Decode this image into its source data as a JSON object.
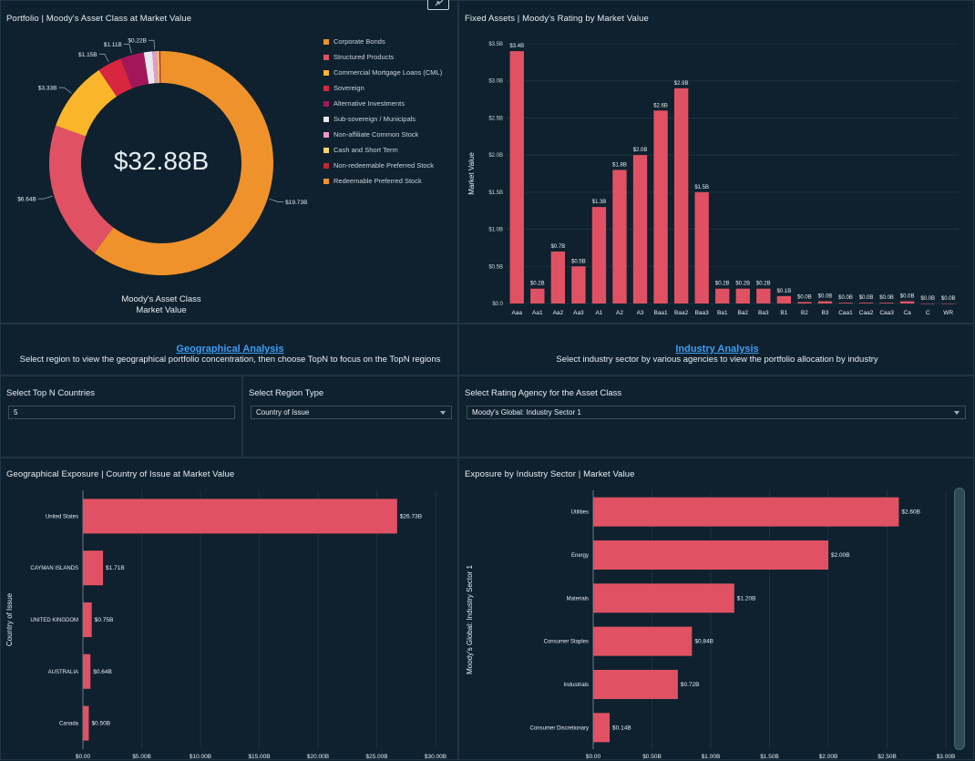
{
  "colors": {
    "bar": "#e05263",
    "grid": "#1f3545",
    "axis": "#7f8f9a"
  },
  "donut_panel": {
    "title": "Portfolio | Moody's Asset Class at Market Value",
    "center_value": "$32.88B",
    "caption_line1": "Moody's Asset Class",
    "caption_line2": "Market Value"
  },
  "rating_panel": {
    "title": "Fixed Assets | Moody's Rating by Market Value",
    "ylabel": "Market Value"
  },
  "geo_section": {
    "link": "Geographical Analysis",
    "desc": "Select region to view the geographical portfolio concentration, then choose TopN to focus on the TopN regions"
  },
  "industry_section": {
    "link": "Industry Analysis",
    "desc": "Select industry sector by various agencies to view the portfolio allocation by industry"
  },
  "controls": {
    "topn_label": "Select Top N Countries",
    "topn_value": "5",
    "region_label": "Select Region Type",
    "region_value": "Country of Issue",
    "agency_label": "Select Rating Agency for the Asset Class",
    "agency_value": "Moody's Global: Industry Sector 1"
  },
  "geo_panel": {
    "title": "Geographical Exposure | Country of Issue at Market Value",
    "ylabel": "Country of Issue"
  },
  "industry_panel": {
    "title": "Exposure by Industry Sector |  Market Value",
    "ylabel": "Moody's Global: Industry Sector 1"
  },
  "chart_data": [
    {
      "type": "pie",
      "title": "Portfolio | Moody's Asset Class at Market Value",
      "slices": [
        {
          "name": "Corporate Bonds",
          "value": 19.73,
          "label": "$19.73B",
          "color": "#f0922b"
        },
        {
          "name": "Structured Products",
          "value": 6.64,
          "label": "$6.64B",
          "color": "#e05263"
        },
        {
          "name": "Commercial Mortgage Loans (CML)",
          "value": 3.33,
          "label": "$3.33B",
          "color": "#fbb52b"
        },
        {
          "name": "Sovereign",
          "value": 1.15,
          "label": "$1.15B",
          "color": "#d7263d"
        },
        {
          "name": "Alternative Investments",
          "value": 1.11,
          "label": "$1.11B",
          "color": "#a3175a"
        },
        {
          "name": "Sub-sovereign / Municipals",
          "value": 0.4,
          "label": "",
          "color": "#e8e8ee"
        },
        {
          "name": "Non-affiliate Common Stock",
          "value": 0.22,
          "label": "$0.22B",
          "color": "#e89ac7"
        },
        {
          "name": "Cash and Short Term",
          "value": 0.1,
          "label": "",
          "color": "#f3d36b"
        },
        {
          "name": "Non-redeemable Preferred Stock",
          "value": 0.06,
          "label": "",
          "color": "#c1272d"
        },
        {
          "name": "Redeemable Preferred Stock",
          "value": 0.04,
          "label": "",
          "color": "#f0922b"
        }
      ]
    },
    {
      "type": "bar",
      "title": "Fixed Assets | Moody's Rating by Market Value",
      "categories": [
        "Aaa",
        "Aa1",
        "Aa2",
        "Aa3",
        "A1",
        "A2",
        "A3",
        "Baa1",
        "Baa2",
        "Baa3",
        "Ba1",
        "Ba2",
        "Ba3",
        "B1",
        "B2",
        "B3",
        "Caa1",
        "Caa2",
        "Caa3",
        "Ca",
        "C",
        "WR"
      ],
      "values": [
        3.4,
        0.2,
        0.7,
        0.5,
        1.3,
        1.8,
        2.0,
        2.6,
        2.9,
        1.5,
        0.2,
        0.2,
        0.2,
        0.1,
        0.02,
        0.03,
        0.01,
        0.01,
        0.01,
        0.03,
        0.0,
        0.0
      ],
      "labels": [
        "$3.4B",
        "$0.2B",
        "$0.7B",
        "$0.5B",
        "$1.3B",
        "$1.8B",
        "$2.0B",
        "$2.6B",
        "$2.9B",
        "$1.5B",
        "$0.2B",
        "$0.2B",
        "$0.2B",
        "$0.1B",
        "$0.0B",
        "$0.0B",
        "$0.0B",
        "$0.0B",
        "$0.0B",
        "$0.0B",
        "$0.0B",
        "$0.0B"
      ],
      "yticks": [
        "$0.0",
        "$0.5B",
        "$1.0B",
        "$1.5B",
        "$2.0B",
        "$2.5B",
        "$3.0B",
        "$3.5B"
      ],
      "ylim": [
        0,
        3.5
      ],
      "ylabel": "Market Value"
    },
    {
      "type": "bar",
      "orientation": "horizontal",
      "title": "Geographical Exposure | Country of Issue at Market Value",
      "categories": [
        "United States",
        "CAYMAN ISLANDS",
        "UNITED KINGDOM",
        "AUSTRALIA",
        "Canada"
      ],
      "values": [
        26.73,
        1.71,
        0.75,
        0.64,
        0.5
      ],
      "labels": [
        "$26.73B",
        "$1.71B",
        "$0.75B",
        "$0.64B",
        "$0.50B"
      ],
      "xticks": [
        "$0.00",
        "$5.00B",
        "$10.00B",
        "$15.00B",
        "$20.00B",
        "$25.00B",
        "$30.00B"
      ],
      "xlim": [
        0,
        30
      ],
      "ylabel": "Country of Issue"
    },
    {
      "type": "bar",
      "orientation": "horizontal",
      "title": "Exposure by Industry Sector |  Market Value",
      "categories": [
        "Utilities",
        "Energy",
        "Materials",
        "Consumer Staples",
        "Industrials",
        "Consumer Discretionary"
      ],
      "values": [
        2.6,
        2.0,
        1.2,
        0.84,
        0.72,
        0.14
      ],
      "labels": [
        "$2.60B",
        "$2.00B",
        "$1.20B",
        "$0.84B",
        "$0.72B",
        "$0.14B"
      ],
      "xticks": [
        "$0.00",
        "$0.50B",
        "$1.00B",
        "$1.50B",
        "$2.00B",
        "$2.50B",
        "$3.00B"
      ],
      "xlim": [
        0,
        3
      ],
      "ylabel": "Moody's Global: Industry Sector 1"
    }
  ]
}
